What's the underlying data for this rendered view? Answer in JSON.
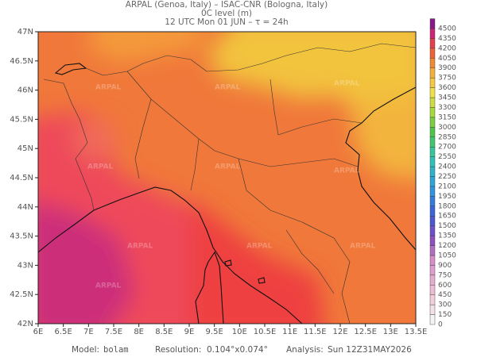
{
  "header": {
    "line1": "ARPAL (Genoa, Italy)  –  ISAC-CNR (Bologna, Italy)",
    "line2": "0C level (m)",
    "line3": "12 UTC Mon 01 JUN  –  τ = 24h"
  },
  "map": {
    "lat_ticks": [
      {
        "value": 47,
        "label": "47N"
      },
      {
        "value": 46.5,
        "label": "46.5N"
      },
      {
        "value": 46,
        "label": "46N"
      },
      {
        "value": 45.5,
        "label": "45.5N"
      },
      {
        "value": 45,
        "label": "45N"
      },
      {
        "value": 44.5,
        "label": "44.5N"
      },
      {
        "value": 44,
        "label": "44N"
      },
      {
        "value": 43.5,
        "label": "43.5N"
      },
      {
        "value": 43,
        "label": "43N"
      },
      {
        "value": 42.5,
        "label": "42.5N"
      },
      {
        "value": 42,
        "label": "42N"
      }
    ],
    "lon_ticks": [
      {
        "value": 6,
        "label": "6E"
      },
      {
        "value": 6.5,
        "label": "6.5E"
      },
      {
        "value": 7,
        "label": "7E"
      },
      {
        "value": 7.5,
        "label": "7.5E"
      },
      {
        "value": 8,
        "label": "8E"
      },
      {
        "value": 8.5,
        "label": "8.5E"
      },
      {
        "value": 9,
        "label": "9E"
      },
      {
        "value": 9.5,
        "label": "9.5E"
      },
      {
        "value": 10,
        "label": "10E"
      },
      {
        "value": 10.5,
        "label": "10.5E"
      },
      {
        "value": 11,
        "label": "11E"
      },
      {
        "value": 11.5,
        "label": "11.5E"
      },
      {
        "value": 12,
        "label": "12E"
      },
      {
        "value": 12.5,
        "label": "12.5E"
      },
      {
        "value": 13,
        "label": "13E"
      },
      {
        "value": 13.5,
        "label": "13.5E"
      }
    ],
    "watermark": "ARPAL"
  },
  "colorbar": {
    "levels": [
      0,
      150,
      300,
      450,
      600,
      750,
      900,
      1050,
      1200,
      1350,
      1500,
      1650,
      1800,
      1950,
      2100,
      2250,
      2400,
      2550,
      2700,
      2850,
      3000,
      3150,
      3300,
      3450,
      3600,
      3750,
      3900,
      4050,
      4200,
      4350,
      4500
    ]
  },
  "footer": {
    "model_label": "Model:",
    "model": "bolam",
    "resolution_label": "Resolution:",
    "resolution": "0.104°x0.074°",
    "analysis_label": "Analysis:",
    "analysis": "Sun 12Z31MAY2026"
  }
}
